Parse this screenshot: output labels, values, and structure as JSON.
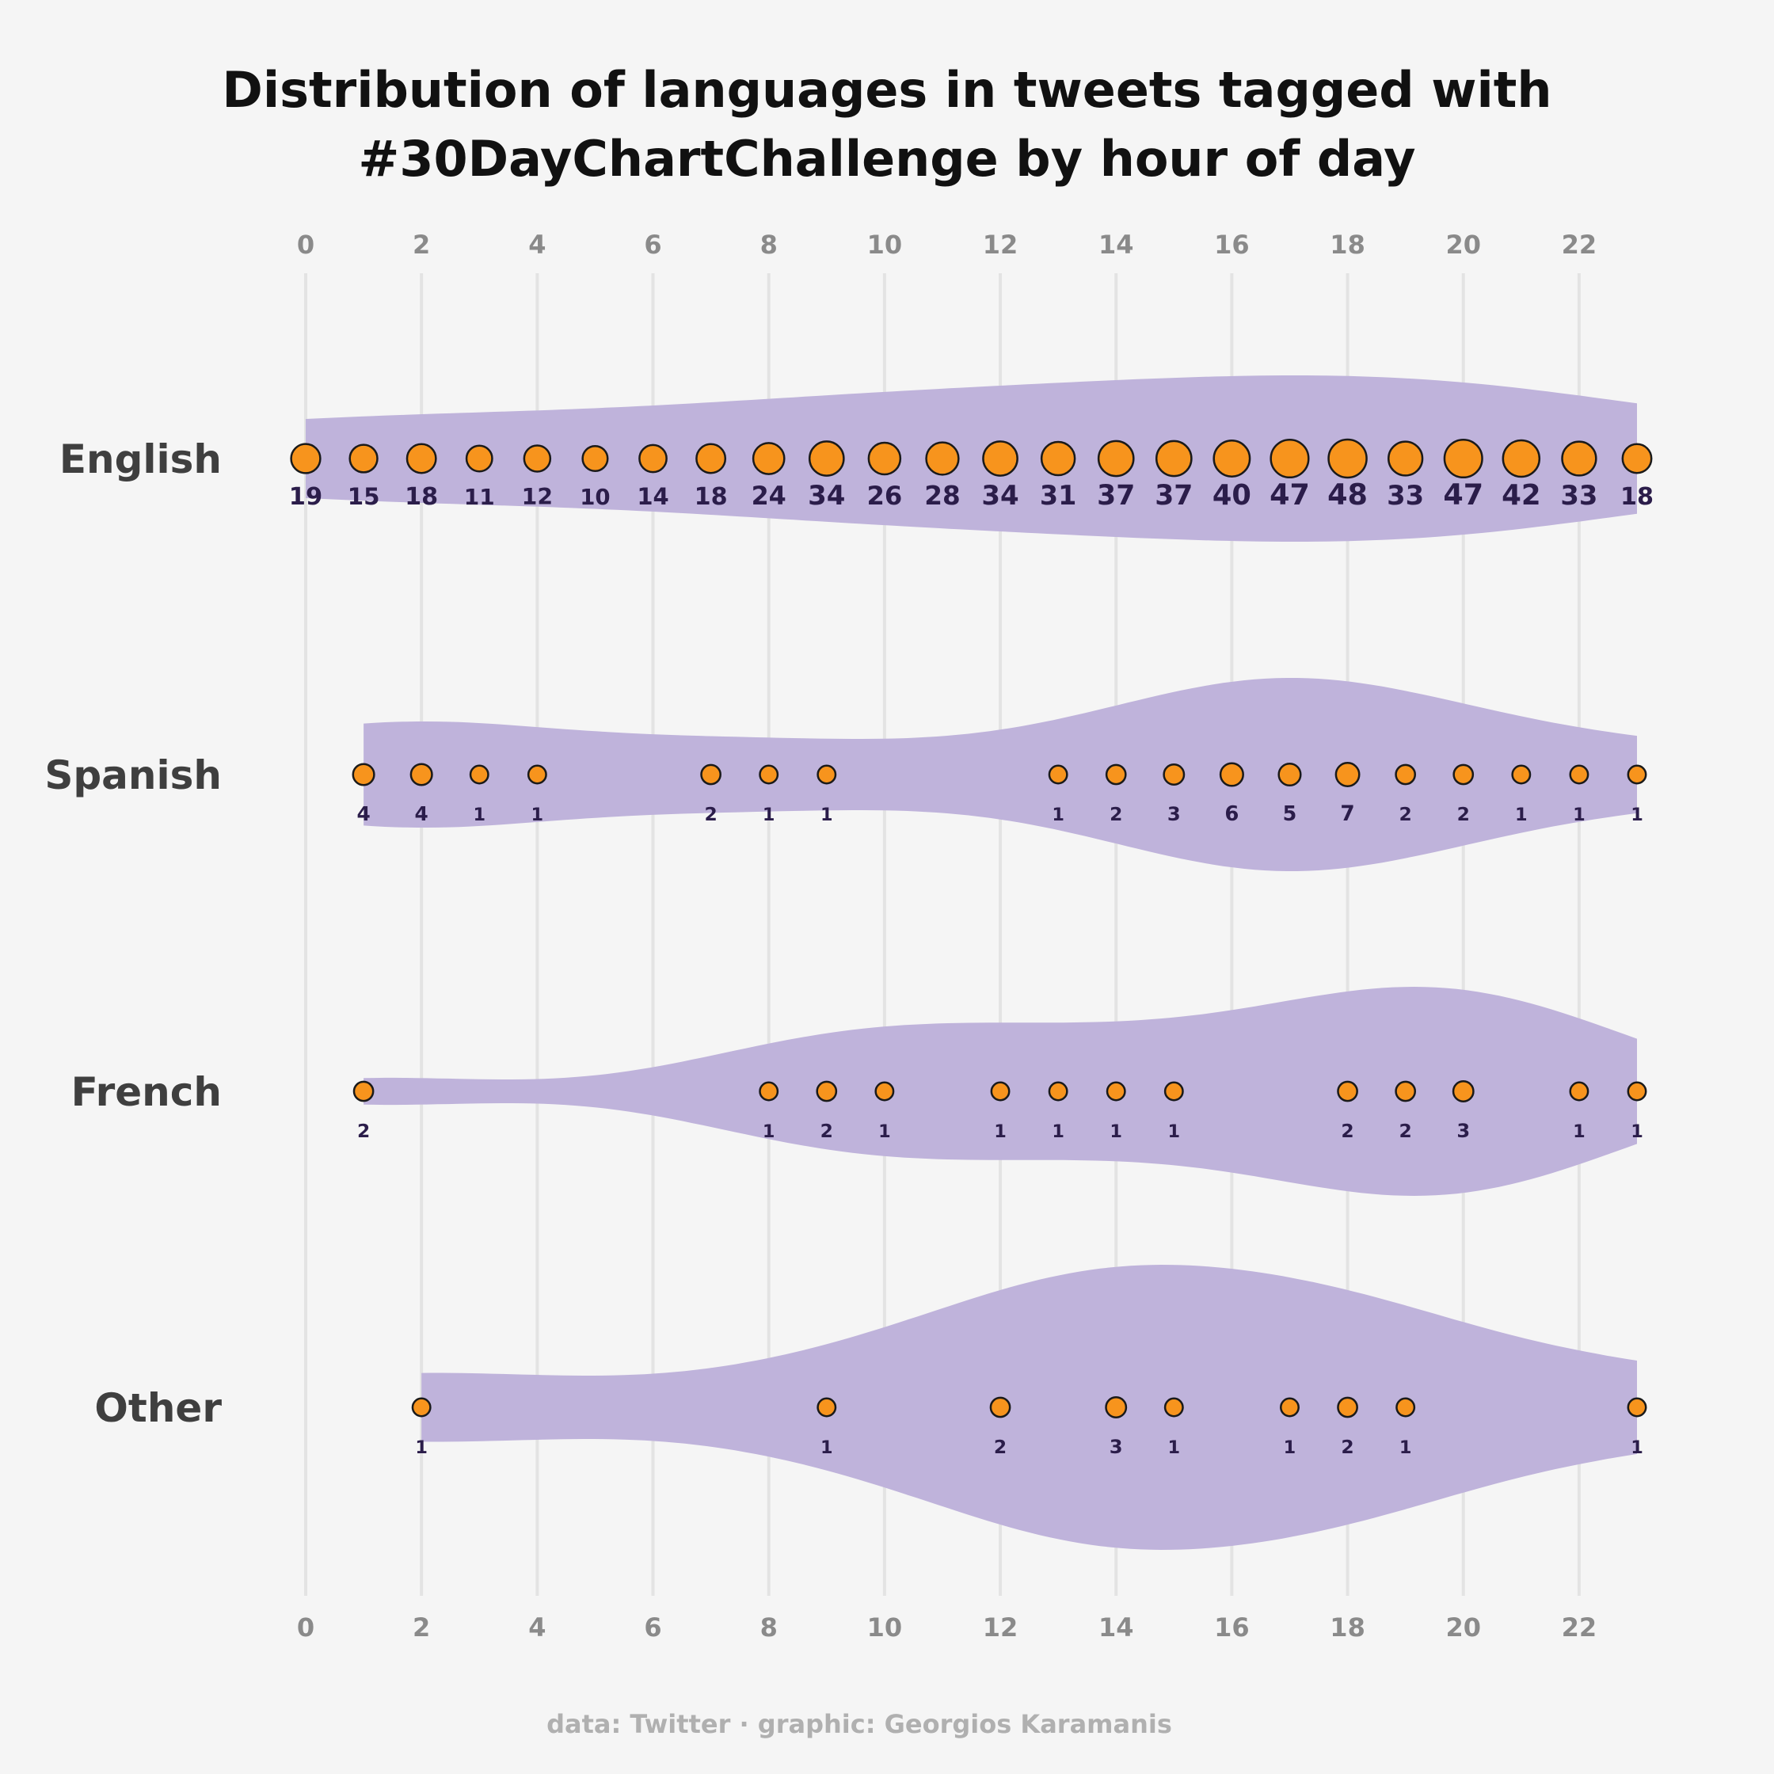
{
  "chart_data": {
    "type": "scatter",
    "title_lines": [
      "Distribution of languages in tweets tagged with",
      "#30DayChartChallenge by hour of day"
    ],
    "caption": "data: Twitter · graphic: Georgios Karamanis",
    "x_ticks": [
      0,
      2,
      4,
      6,
      8,
      10,
      12,
      14,
      16,
      18,
      20,
      22
    ],
    "xlim": [
      0,
      23
    ],
    "grid": true,
    "colors": {
      "background": "#f5f5f5",
      "violin": "#bfb3db",
      "point": "#f7941d",
      "point_stroke": "#1a1a1a",
      "gridline": "#e3e3e3",
      "count_text": "#2b1d4a"
    },
    "series": [
      {
        "name": "English",
        "x": [
          0,
          1,
          2,
          3,
          4,
          5,
          6,
          7,
          8,
          9,
          10,
          11,
          12,
          13,
          14,
          15,
          16,
          17,
          18,
          19,
          20,
          21,
          22,
          23
        ],
        "counts": [
          19,
          15,
          18,
          11,
          12,
          10,
          14,
          18,
          24,
          34,
          26,
          28,
          34,
          31,
          37,
          37,
          40,
          47,
          48,
          33,
          47,
          42,
          33,
          18
        ]
      },
      {
        "name": "Spanish",
        "x": [
          1,
          2,
          3,
          4,
          7,
          8,
          9,
          13,
          14,
          15,
          16,
          17,
          18,
          19,
          20,
          21,
          22,
          23
        ],
        "counts": [
          4,
          4,
          1,
          1,
          2,
          1,
          1,
          1,
          2,
          3,
          6,
          5,
          7,
          2,
          2,
          1,
          1,
          1
        ]
      },
      {
        "name": "French",
        "x": [
          1,
          8,
          9,
          10,
          12,
          13,
          14,
          15,
          18,
          19,
          20,
          22,
          23
        ],
        "counts": [
          2,
          1,
          2,
          1,
          1,
          1,
          1,
          1,
          2,
          2,
          3,
          1,
          1
        ]
      },
      {
        "name": "Other",
        "x": [
          2,
          9,
          12,
          14,
          15,
          17,
          18,
          19,
          23
        ],
        "counts": [
          1,
          1,
          2,
          3,
          1,
          1,
          2,
          1,
          1
        ]
      }
    ]
  }
}
